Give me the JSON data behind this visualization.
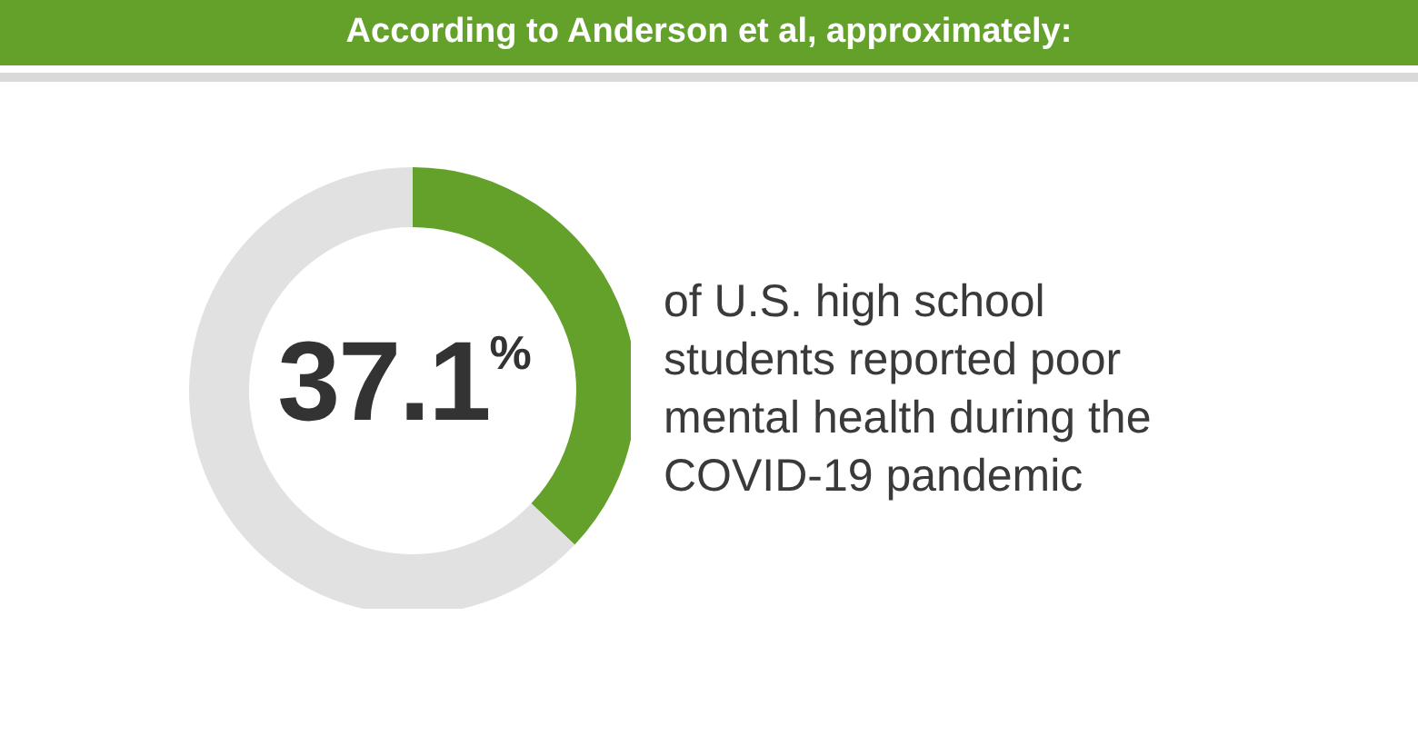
{
  "chart_data": {
    "type": "donut",
    "title": "According to Anderson et al, approximately:",
    "categories": [
      null,
      null
    ],
    "values": [
      37.1,
      62.9
    ],
    "colors": [
      "#63a12a",
      "#e1e1e1"
    ],
    "annotations": [
      "37.1$^{%}$",
      "of U.S. high school students reported poor mental health during the COVID-19 pandemic"
    ]
  }
}
